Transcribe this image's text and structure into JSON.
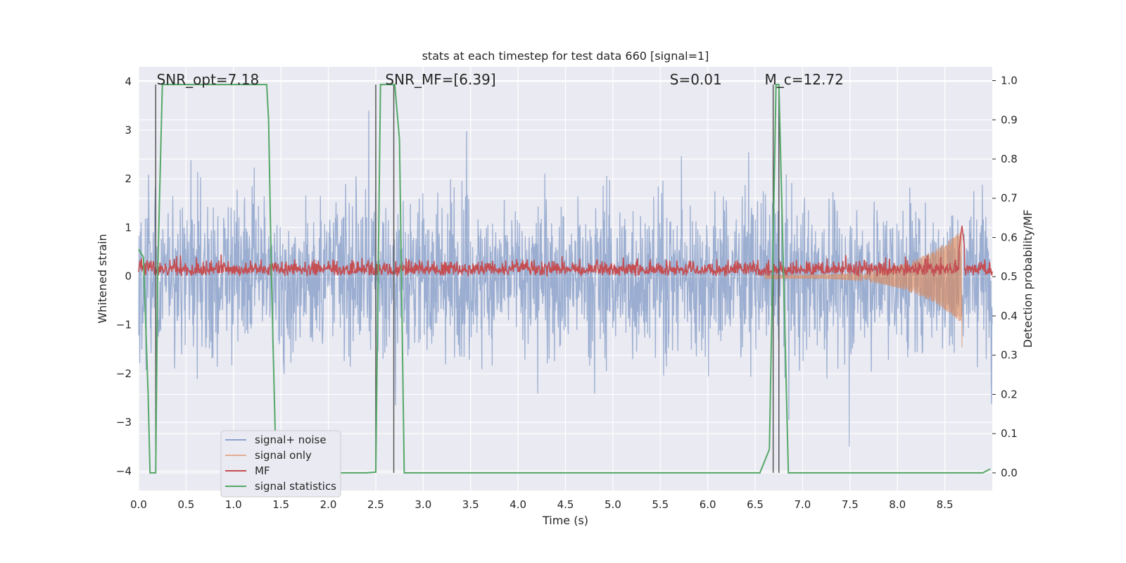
{
  "chart_data": {
    "type": "line",
    "title": "stats at each timestep for test data 660 [signal=1]",
    "xlabel": "Time (s)",
    "ylabel_left": "Whitened strain",
    "ylabel_right": "Detection probability/MF",
    "xlim": [
      0.0,
      9.0
    ],
    "ylim_left": [
      -4.4,
      4.3
    ],
    "ylim_right": [
      -0.045,
      1.035
    ],
    "x_ticks": [
      "0.0",
      "0.5",
      "1.0",
      "1.5",
      "2.0",
      "2.5",
      "3.0",
      "3.5",
      "4.0",
      "4.5",
      "5.0",
      "5.5",
      "6.0",
      "6.5",
      "7.0",
      "7.5",
      "8.0",
      "8.5"
    ],
    "y_ticks_left": [
      "4",
      "3",
      "2",
      "1",
      "0",
      "−1",
      "−2",
      "−3",
      "−4"
    ],
    "y_ticks_right": [
      "1.0",
      "0.9",
      "0.8",
      "0.7",
      "0.6",
      "0.5",
      "0.4",
      "0.3",
      "0.2",
      "0.1",
      "0.0"
    ],
    "grid": true,
    "legend_placement": "lower-left",
    "annotations": [
      {
        "text": "SNR_opt=7.18",
        "x": 0.19
      },
      {
        "text": "SNR_MF=[6.39]",
        "x": 2.6
      },
      {
        "text": "S=0.01",
        "x": 5.6
      },
      {
        "text": "M_c=12.72",
        "x": 6.6
      }
    ],
    "vertical_markers_x": [
      0.18,
      2.5,
      2.69,
      6.69,
      6.75
    ],
    "colors": {
      "signal_noise": "#4c72b0",
      "signal_only": "#dd8452",
      "mf": "#c44e52",
      "signal_statistics": "#55a868",
      "background": "#eaeaf2",
      "grid": "#ffffff"
    },
    "series": [
      {
        "name": "signal+ noise",
        "axis": "left",
        "description_values": "dense noise, amplitude approx ±2.5 with spikes to ±4",
        "envelope": [
          -3.0,
          3.9
        ]
      },
      {
        "name": "signal only",
        "axis": "right",
        "chirp": {
          "t_start": 6.6,
          "t_merge": 8.68,
          "amp_start": 0.005,
          "amp_merge": 0.12
        }
      },
      {
        "name": "MF",
        "axis": "right",
        "baseline": 0.5,
        "noise_range": [
          0.5,
          0.57
        ],
        "peak": {
          "x": 8.68,
          "y": 0.63
        }
      },
      {
        "name": "signal statistics",
        "axis": "right",
        "x": [
          0.0,
          0.05,
          0.1,
          0.12,
          0.15,
          0.18,
          0.2,
          0.25,
          0.3,
          1.35,
          1.37,
          1.4,
          1.45,
          1.5,
          1.55,
          1.6,
          1.8,
          1.9,
          2.0,
          2.05,
          2.1,
          2.2,
          2.4,
          2.5,
          2.55,
          2.6,
          2.62,
          2.7,
          2.75,
          2.8,
          2.85,
          3.0,
          4.0,
          5.0,
          6.0,
          6.5,
          6.55,
          6.65,
          6.72,
          6.75,
          6.8,
          6.85,
          6.88,
          7.0,
          8.0,
          8.9,
          8.98
        ],
        "values": [
          0.57,
          0.55,
          0.2,
          0.0,
          0.0,
          0.0,
          0.5,
          0.99,
          0.99,
          0.99,
          0.9,
          0.5,
          0.0,
          0.0,
          0.0,
          0.0,
          0.0,
          0.003,
          0.007,
          0.002,
          0.0,
          0.0,
          0.0,
          0.002,
          0.99,
          0.99,
          0.99,
          0.99,
          0.85,
          0.0,
          0.0,
          0.0,
          0.0,
          0.0,
          0.0,
          0.0,
          0.0,
          0.06,
          0.99,
          0.99,
          0.5,
          0.0,
          0.0,
          0.0,
          0.0,
          0.0,
          0.01
        ]
      }
    ]
  }
}
